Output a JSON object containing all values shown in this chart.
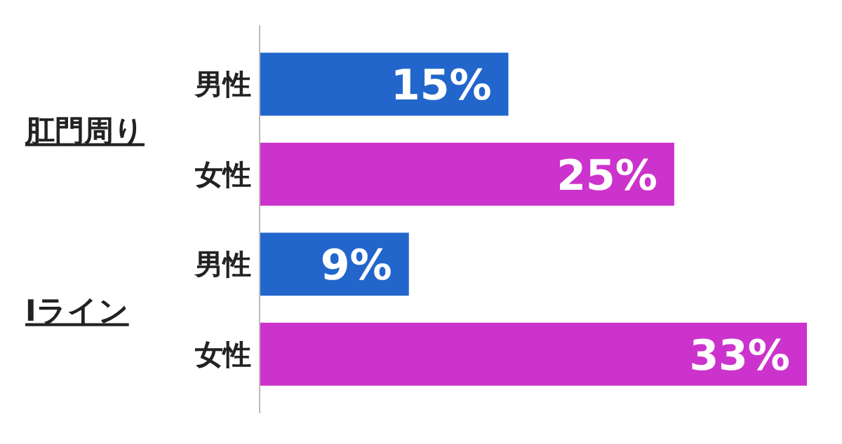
{
  "chart_data": {
    "type": "bar",
    "orientation": "horizontal",
    "categories": [
      "肛門周り",
      "Iライン"
    ],
    "series": [
      {
        "name": "男性",
        "color": "#2266cc",
        "values": [
          15,
          9
        ],
        "value_labels": [
          "15%",
          "9%"
        ]
      },
      {
        "name": "女性",
        "color": "#cc33cc",
        "values": [
          25,
          33
        ],
        "value_labels": [
          "25%",
          "33%"
        ]
      }
    ]
  }
}
